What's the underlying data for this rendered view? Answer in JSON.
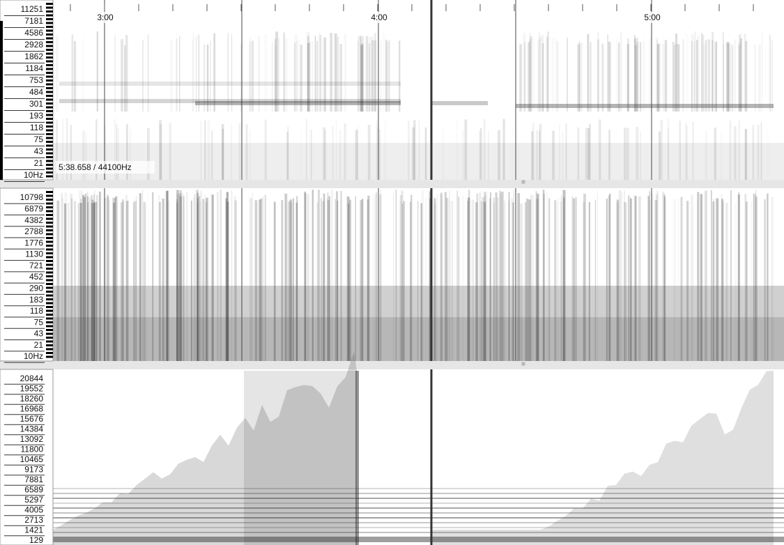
{
  "timeline": {
    "labels": [
      "3:00",
      "4:00",
      "5:00"
    ]
  },
  "panes": [
    {
      "scale_labels": [
        "11251",
        "7181",
        "4586",
        "2928",
        "1862",
        "1184",
        "753",
        "484",
        "301",
        "193",
        "118",
        "75",
        "43",
        "21",
        "10Hz"
      ],
      "status": "5:38.658 / 44100Hz"
    },
    {
      "scale_labels": [
        "10798",
        "6879",
        "4382",
        "2788",
        "1776",
        "1130",
        "721",
        "452",
        "290",
        "183",
        "118",
        "75",
        "43",
        "21",
        "10Hz"
      ]
    },
    {
      "scale_labels": [
        "20844",
        "19552",
        "18260",
        "16968",
        "15676",
        "14384",
        "13092",
        "11800",
        "10465",
        "9173",
        "7881",
        "6589",
        "5297",
        "4005",
        "2713",
        "1421",
        "129"
      ]
    }
  ]
}
